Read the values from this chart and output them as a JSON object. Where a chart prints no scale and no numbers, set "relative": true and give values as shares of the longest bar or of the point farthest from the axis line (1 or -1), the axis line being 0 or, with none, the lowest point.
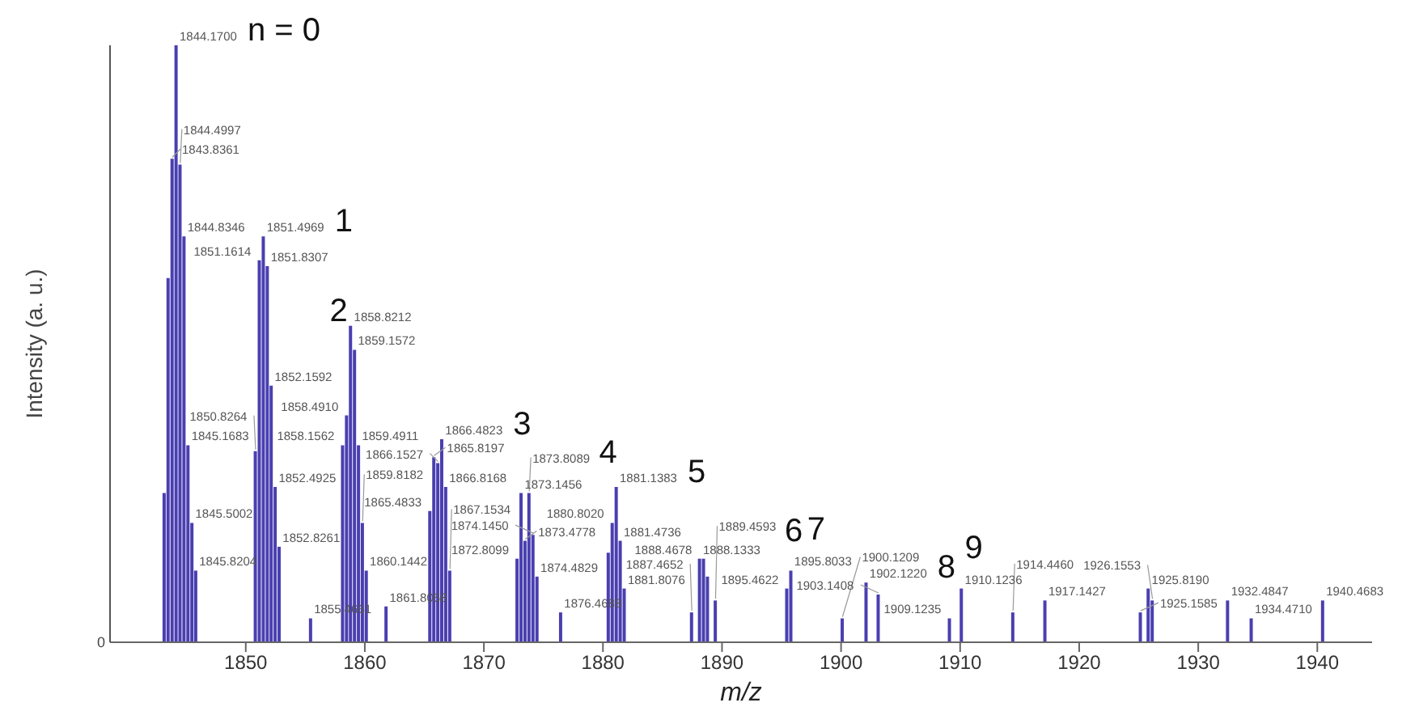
{
  "chart_data": {
    "type": "bar",
    "relative": true,
    "xlabel": "m/z",
    "ylabel": "Intensity (a. u.)",
    "xlim": [
      1838.6,
      1944.6
    ],
    "xticks": [
      1850,
      1860,
      1870,
      1880,
      1890,
      1900,
      1910,
      1920,
      1930,
      1940
    ],
    "series": [
      {
        "color": "#4a3fb0",
        "x": [
          1843.17,
          1843.5,
          1843.8361,
          1844.17,
          1844.4997,
          1844.8346,
          1845.1683,
          1845.5002,
          1845.8204,
          1850.8264,
          1851.1614,
          1851.4969,
          1851.8307,
          1852.1592,
          1852.4925,
          1852.8261,
          1855.4661,
          1858.1562,
          1858.491,
          1858.8212,
          1859.1572,
          1859.4911,
          1859.8182,
          1860.1442,
          1861.8058,
          1865.4833,
          1865.8197,
          1866.1527,
          1866.4823,
          1866.8168,
          1867.1534,
          1872.8099,
          1873.1456,
          1873.4778,
          1873.8089,
          1874.145,
          1874.4829,
          1876.4688,
          1880.47,
          1880.802,
          1881.1383,
          1881.4736,
          1881.8076,
          1887.4652,
          1888.1333,
          1888.4678,
          1888.8,
          1889.4593,
          1895.4622,
          1895.8033,
          1900.1209,
          1902.122,
          1903.1408,
          1909.1235,
          1910.1236,
          1914.446,
          1917.1427,
          1925.1585,
          1925.819,
          1926.1553,
          1932.4847,
          1934.471,
          1940.4683
        ],
        "values": [
          0.25,
          0.61,
          0.81,
          1,
          0.8,
          0.68,
          0.33,
          0.2,
          0.12,
          0.32,
          0.64,
          0.68,
          0.63,
          0.43,
          0.26,
          0.16,
          0.04,
          0.33,
          0.38,
          0.53,
          0.49,
          0.33,
          0.2,
          0.12,
          0.06,
          0.22,
          0.31,
          0.3,
          0.34,
          0.26,
          0.12,
          0.14,
          0.25,
          0.17,
          0.25,
          0.18,
          0.11,
          0.05,
          0.15,
          0.2,
          0.26,
          0.17,
          0.09,
          0.05,
          0.14,
          0.14,
          0.11,
          0.07,
          0.09,
          0.12,
          0.04,
          0.1,
          0.08,
          0.04,
          0.09,
          0.05,
          0.07,
          0.05,
          0.09,
          0.07,
          0.07,
          0.04,
          0.07
        ]
      }
    ],
    "annotations": [
      "0",
      {
        "text": "1843.8361",
        "x": 1843.8361,
        "y": 0.81
      },
      {
        "text": "1844.1700",
        "x": 1844.17,
        "y": 1
      },
      {
        "text": "1844.4997",
        "x": 1844.4997,
        "y": 0.8
      },
      {
        "text": "1844.8346",
        "x": 1844.8346,
        "y": 0.68
      },
      {
        "text": "1845.1683",
        "x": 1845.1683,
        "y": 0.33
      },
      {
        "text": "1845.5002",
        "x": 1845.5002,
        "y": 0.2
      },
      {
        "text": "1845.8204",
        "x": 1845.8204,
        "y": 0.12
      },
      {
        "text": "1850.8264",
        "x": 1850.8264,
        "y": 0.32
      },
      {
        "text": "1851.1614",
        "x": 1851.1614,
        "y": 0.64
      },
      {
        "text": "1851.4969",
        "x": 1851.4969,
        "y": 0.68
      },
      {
        "text": "1851.8307",
        "x": 1851.8307,
        "y": 0.63
      },
      {
        "text": "1852.1592",
        "x": 1852.1592,
        "y": 0.43
      },
      {
        "text": "1852.4925",
        "x": 1852.4925,
        "y": 0.26
      },
      {
        "text": "1852.8261",
        "x": 1852.8261,
        "y": 0.16
      },
      {
        "text": "1855.4661",
        "x": 1855.4661,
        "y": 0.04
      },
      {
        "text": "1858.1562",
        "x": 1858.1562,
        "y": 0.33
      },
      {
        "text": "1858.4910",
        "x": 1858.491,
        "y": 0.38
      },
      {
        "text": "1858.8212",
        "x": 1858.8212,
        "y": 0.53
      },
      {
        "text": "1859.1572",
        "x": 1859.1572,
        "y": 0.49
      },
      {
        "text": "1859.4911",
        "x": 1859.4911,
        "y": 0.33
      },
      {
        "text": "1859.8182",
        "x": 1859.8182,
        "y": 0.2
      },
      {
        "text": "1860.1442",
        "x": 1860.1442,
        "y": 0.12
      },
      {
        "text": "1861.8058",
        "x": 1861.8058,
        "y": 0.06
      },
      {
        "text": "1865.4833",
        "x": 1865.4833,
        "y": 0.22
      },
      {
        "text": "1865.8197",
        "x": 1865.8197,
        "y": 0.31
      },
      {
        "text": "1866.1527",
        "x": 1866.1527,
        "y": 0.3
      },
      {
        "text": "1866.4823",
        "x": 1866.4823,
        "y": 0.34
      },
      {
        "text": "1866.8168",
        "x": 1866.8168,
        "y": 0.26
      },
      {
        "text": "1867.1534",
        "x": 1867.1534,
        "y": 0.12
      },
      {
        "text": "1872.8099",
        "x": 1872.8099,
        "y": 0.14
      },
      {
        "text": "1873.1456",
        "x": 1873.1456,
        "y": 0.25
      },
      {
        "text": "1873.4778",
        "x": 1873.4778,
        "y": 0.17
      },
      {
        "text": "1873.8089",
        "x": 1873.8089,
        "y": 0.25
      },
      {
        "text": "1874.1450",
        "x": 1874.145,
        "y": 0.18
      },
      {
        "text": "1874.4829",
        "x": 1874.4829,
        "y": 0.11
      },
      {
        "text": "1876.4688",
        "x": 1876.4688,
        "y": 0.05
      },
      {
        "text": "1880.8020",
        "x": 1880.802,
        "y": 0.2
      },
      {
        "text": "1881.1383",
        "x": 1881.1383,
        "y": 0.26
      },
      {
        "text": "1881.4736",
        "x": 1881.4736,
        "y": 0.17
      },
      {
        "text": "1881.8076",
        "x": 1881.8076,
        "y": 0.09
      },
      {
        "text": "1887.4652",
        "x": 1887.4652,
        "y": 0.05
      },
      {
        "text": "1888.1333",
        "x": 1888.1333,
        "y": 0.14
      },
      {
        "text": "1888.4678",
        "x": 1888.4678,
        "y": 0.14
      },
      {
        "text": "1889.4593",
        "x": 1889.4593,
        "y": 0.07
      },
      {
        "text": "1895.4622",
        "x": 1895.4622,
        "y": 0.09
      },
      {
        "text": "1895.8033",
        "x": 1895.8033,
        "y": 0.12
      },
      {
        "text": "1900.1209",
        "x": 1900.1209,
        "y": 0.04
      },
      {
        "text": "1902.1220",
        "x": 1902.122,
        "y": 0.1
      },
      {
        "text": "1903.1408",
        "x": 1903.1408,
        "y": 0.08
      },
      {
        "text": "1909.1235",
        "x": 1909.1235,
        "y": 0.04
      },
      {
        "text": "1910.1236",
        "x": 1910.1236,
        "y": 0.09
      },
      {
        "text": "1914.4460",
        "x": 1914.446,
        "y": 0.05
      },
      {
        "text": "1917.1427",
        "x": 1917.1427,
        "y": 0.07
      },
      {
        "text": "1925.1585",
        "x": 1925.1585,
        "y": 0.05
      },
      {
        "text": "1925.8190",
        "x": 1925.819,
        "y": 0.09
      },
      {
        "text": "1926.1553",
        "x": 1926.1553,
        "y": 0.07
      },
      {
        "text": "1932.4847",
        "x": 1932.4847,
        "y": 0.07
      },
      {
        "text": "1934.4710",
        "x": 1934.471,
        "y": 0.04
      },
      {
        "text": "1940.4683",
        "x": 1940.4683,
        "y": 0.07
      },
      {
        "text": "n = 0",
        "x": 1844.17,
        "y": 1
      },
      {
        "text": "1",
        "x": 1851.4969,
        "y": 0.68
      },
      {
        "text": "2",
        "x": 1858.8212,
        "y": 0.53
      },
      {
        "text": "3",
        "x": 1866.4823,
        "y": 0.34
      },
      {
        "text": "4",
        "x": 1873.1456,
        "y": 0.25
      },
      {
        "text": "5",
        "x": 1881.1383,
        "y": 0.26
      },
      {
        "text": "6",
        "x": 1888.4678,
        "y": 0.14
      },
      {
        "text": "7",
        "x": 1895.8033,
        "y": 0.12
      },
      {
        "text": "8",
        "x": 1902.122,
        "y": 0.1
      },
      {
        "text": "9",
        "x": 1910.1236,
        "y": 0.09
      }
    ]
  }
}
